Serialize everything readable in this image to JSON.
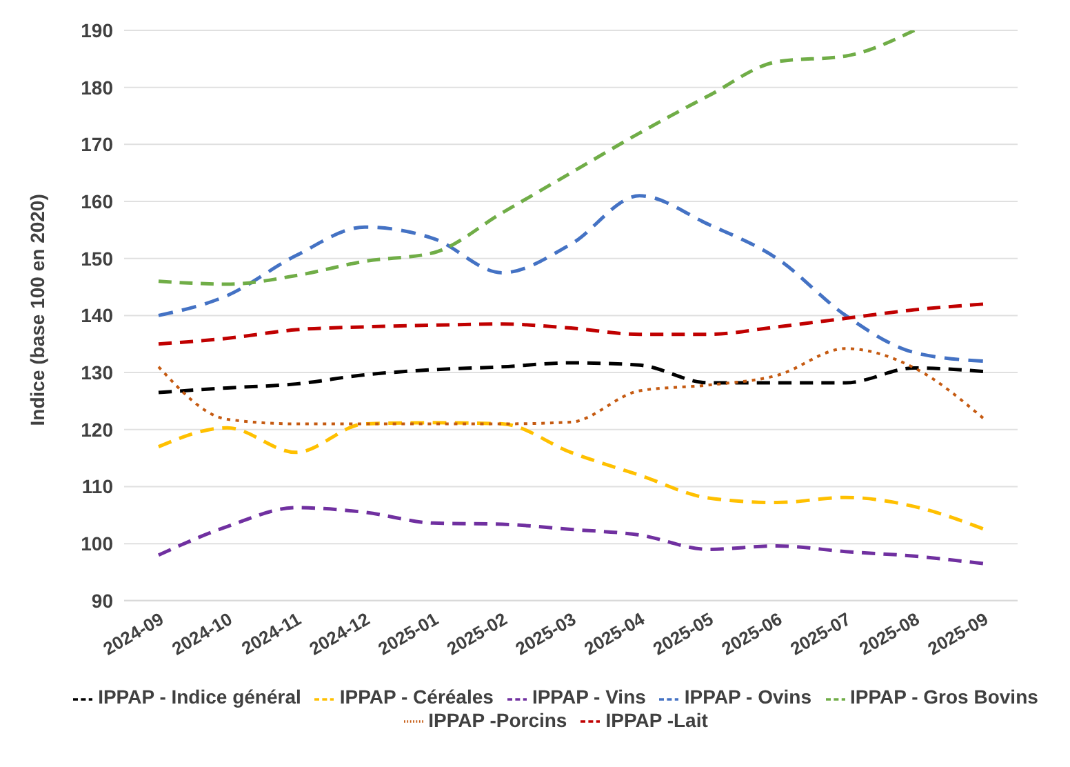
{
  "chart_data": {
    "type": "line",
    "ylabel": "Indice (base 100 en 2020)",
    "categories": [
      "2024-09",
      "2024-10",
      "2024-11",
      "2024-12",
      "2025-01",
      "2025-02",
      "2025-03",
      "2025-04",
      "2025-05",
      "2025-06",
      "2025-07",
      "2025-08",
      "2025-09"
    ],
    "ylim": [
      90,
      190
    ],
    "yticks": [
      90,
      100,
      110,
      120,
      130,
      140,
      150,
      160,
      170,
      180,
      190
    ],
    "grid": "y",
    "legend": "bottom",
    "marker": "none",
    "series": [
      {
        "name": "IPPAP - Indice général",
        "color": "#000000",
        "line_style": "dashed",
        "values": [
          126.5,
          127.3,
          128,
          129.6,
          130.5,
          131,
          131.7,
          131.3,
          128.2,
          128.2,
          128.2,
          130.8,
          130.2
        ]
      },
      {
        "name": "IPPAP - Céréales",
        "color": "#ffc000",
        "line_style": "dashed",
        "values": [
          117,
          120.3,
          116,
          121,
          121.2,
          121,
          116,
          112,
          108,
          107.2,
          108.1,
          106.5,
          102.6
        ]
      },
      {
        "name": "IPPAP - Vins",
        "color": "#7030a0",
        "line_style": "dashed",
        "values": [
          98,
          103,
          106.3,
          105.5,
          103.6,
          103.4,
          102.5,
          101.5,
          99,
          99.6,
          98.6,
          97.8,
          96.5
        ]
      },
      {
        "name": "IPPAP - Ovins",
        "color": "#4472c4",
        "line_style": "dashed",
        "values": [
          140,
          143.5,
          150.5,
          155.5,
          153.5,
          147.5,
          152.5,
          161,
          156,
          150,
          140,
          133.5,
          132
        ]
      },
      {
        "name": "IPPAP - Gros Bovins",
        "color": "#70ad47",
        "line_style": "dashed",
        "values": [
          146,
          145.5,
          147,
          149.5,
          151,
          158,
          165,
          172,
          178.5,
          184.5,
          185.5,
          190,
          null
        ]
      },
      {
        "name": "IPPAP -Porcins",
        "color": "#c55a11",
        "line_style": "dotted",
        "values": [
          131,
          121.8,
          121,
          121,
          121,
          121,
          121.3,
          126.8,
          127.8,
          129.5,
          134.2,
          130.8,
          122
        ]
      },
      {
        "name": "IPPAP -Lait",
        "color": "#c00000",
        "line_style": "dashed",
        "values": [
          135,
          136,
          137.5,
          138,
          138.3,
          138.5,
          137.8,
          136.7,
          136.7,
          138,
          139.5,
          141,
          142
        ]
      }
    ]
  }
}
